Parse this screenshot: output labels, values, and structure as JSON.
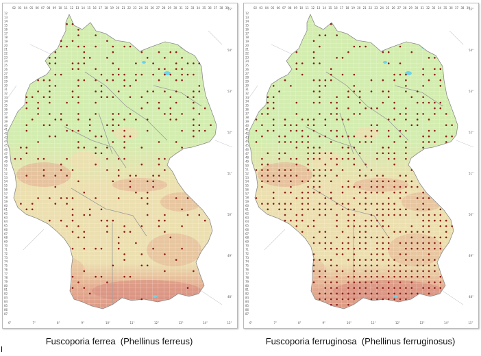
{
  "figures": [
    {
      "id": "left",
      "caption": "Fuscoporia ferrea  (Phellinus ferreus)",
      "dot_density": 0.28,
      "dot_south_bias": -0.6
    },
    {
      "id": "right",
      "caption": "Fuscoporia ferruginosa  (Phellinus ferruginosus)",
      "dot_density": 0.5,
      "dot_south_bias": 0.9
    }
  ],
  "grid_top_labels": [
    "02",
    "03",
    "04",
    "05",
    "06",
    "07",
    "08",
    "09",
    "10",
    "11",
    "12",
    "13",
    "14",
    "15",
    "16",
    "17",
    "18",
    "19",
    "20",
    "21",
    "22",
    "23",
    "24",
    "25",
    "26",
    "27",
    "28",
    "29",
    "30",
    "31",
    "32",
    "33",
    "34",
    "35",
    "36",
    "37",
    "38",
    "39"
  ],
  "grid_side_labels": [
    "12",
    "13",
    "14",
    "15",
    "16",
    "17",
    "18",
    "19",
    "20",
    "21",
    "22",
    "23",
    "24",
    "25",
    "26",
    "27",
    "28",
    "29",
    "30",
    "31",
    "32",
    "33",
    "34",
    "35",
    "36",
    "37",
    "38",
    "39",
    "40",
    "41",
    "42",
    "43",
    "44",
    "45",
    "46",
    "47",
    "48",
    "49",
    "50",
    "51",
    "52",
    "53",
    "54",
    "55",
    "56",
    "57",
    "58",
    "59",
    "60",
    "61",
    "62",
    "63",
    "64",
    "65",
    "66",
    "67",
    "68",
    "69",
    "70",
    "71",
    "72",
    "73",
    "74",
    "75",
    "76",
    "77",
    "78",
    "79",
    "80",
    "81",
    "82",
    "83",
    "84",
    "85",
    "86",
    "87"
  ],
  "longitude_labels": [
    "6°",
    "7°",
    "8°",
    "9°",
    "10°",
    "11°",
    "12°",
    "13°",
    "14°",
    "15°"
  ],
  "latitude_labels": [
    "55°",
    "54°",
    "53°",
    "52°",
    "51°",
    "50°",
    "49°",
    "48°"
  ],
  "colors": {
    "lowland": "#d3edb0",
    "upland": "#ecdfb0",
    "highland": "#e3a98f",
    "alpine": "#d78b7e",
    "water": "#6fd3e6",
    "dot": "#8b1a14",
    "border": "#9a9a9a"
  }
}
